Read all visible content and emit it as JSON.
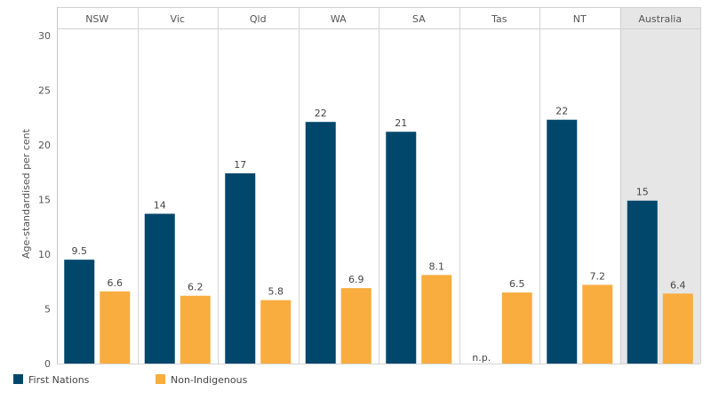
{
  "chart_data": {
    "type": "bar",
    "ylabel": "Age-standardised per cent",
    "ylim": [
      0,
      30
    ],
    "yticks": [
      0,
      5,
      10,
      15,
      20,
      25,
      30
    ],
    "categories": [
      "NSW",
      "Vic",
      "Qld",
      "WA",
      "SA",
      "Tas",
      "NT",
      "Australia"
    ],
    "highlight_category": "Australia",
    "series": [
      {
        "name": "First Nations",
        "color": "#00476b",
        "values": [
          9.5,
          13.7,
          17.4,
          22.1,
          21.2,
          null,
          22.3,
          14.9
        ],
        "labels": [
          "9.5",
          "14",
          "17",
          "22",
          "21",
          "n.p.",
          "22",
          "15"
        ]
      },
      {
        "name": "Non-Indigenous",
        "color": "#f8ad3e",
        "values": [
          6.6,
          6.2,
          5.8,
          6.9,
          8.1,
          6.5,
          7.2,
          6.4
        ],
        "labels": [
          "6.6",
          "6.2",
          "5.8",
          "6.9",
          "8.1",
          "6.5",
          "7.2",
          "6.4"
        ]
      }
    ],
    "legend": {
      "position": "bottom-left",
      "items": [
        {
          "label": "First Nations",
          "color": "#00476b"
        },
        {
          "label": "Non-Indigenous",
          "color": "#f8ad3e"
        }
      ]
    }
  }
}
